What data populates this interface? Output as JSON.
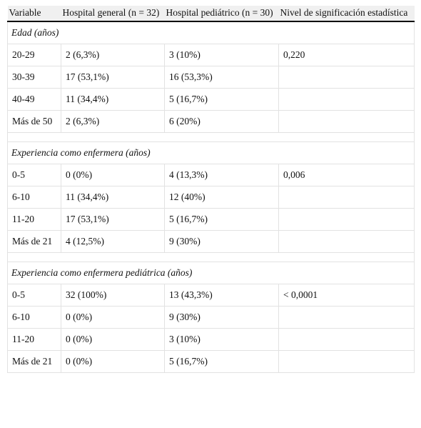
{
  "table": {
    "header": [
      "Variable",
      "Hospital general (n = 32)",
      "Hospital pediátrico (n = 30)",
      "Nivel de significación estadística"
    ],
    "sections": [
      {
        "title": "Edad (años)",
        "rows": [
          [
            "20-29",
            "2 (6,3%)",
            "3 (10%)",
            "0,220"
          ],
          [
            "30-39",
            "17 (53,1%)",
            "16 (53,3%)"
          ],
          [
            "40-49",
            "11 (34,4%)",
            "5 (16,7%)"
          ],
          [
            "Más de 50",
            "2 (6,3%)",
            "6 (20%)"
          ]
        ]
      },
      {
        "title": "Experiencia como enfermera (años)",
        "rows": [
          [
            "0-5",
            "0 (0%)",
            "4 (13,3%)",
            "0,006"
          ],
          [
            "6-10",
            "11 (34,4%)",
            "12 (40%)"
          ],
          [
            "11-20",
            "17 (53,1%)",
            "5 (16,7%)"
          ],
          [
            "Más de 21",
            "4 (12,5%)",
            "9 (30%)"
          ]
        ]
      },
      {
        "title": "Experiencia como enfermera pediátrica (años)",
        "rows": [
          [
            "0-5",
            "32 (100%)",
            "13 (43,3%)",
            "< 0,0001"
          ],
          [
            "6-10",
            "0 (0%)",
            "9 (30%)"
          ],
          [
            "11-20",
            "0 (0%)",
            "3 (10%)"
          ],
          [
            "Más de 21",
            "0 (0%)",
            "5 (16,7%)"
          ]
        ]
      }
    ]
  }
}
